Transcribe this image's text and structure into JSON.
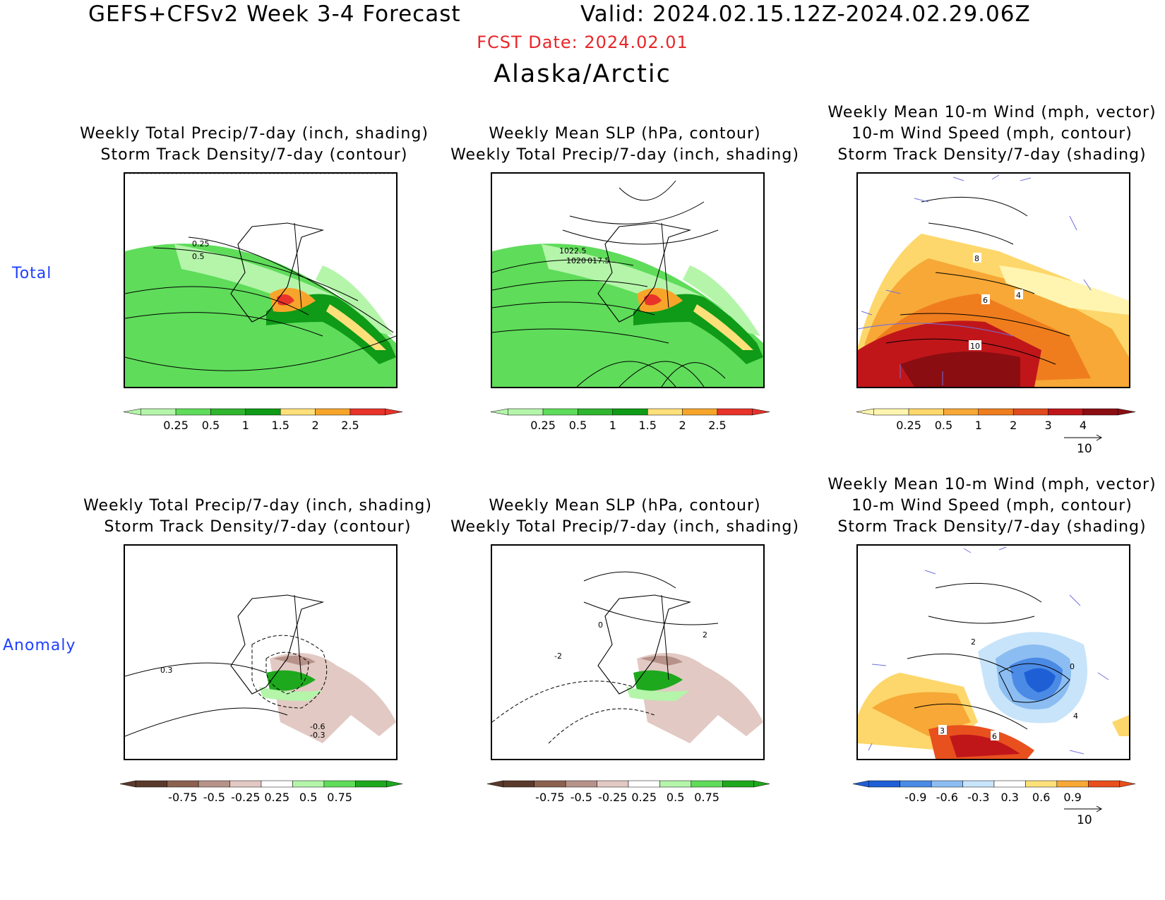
{
  "header": {
    "title_left": "GEFS+CFSv2 Week 3-4 Forecast",
    "title_right": "Valid: 2024.02.15.12Z-2024.02.29.06Z",
    "fcst_date": "FCST Date: 2024.02.01",
    "region": "Alaska/Arctic"
  },
  "rows": {
    "total_label": "Total",
    "anomaly_label": "Anomaly"
  },
  "panels": {
    "precip_track": {
      "line1": "Weekly Total Precip/7-day (inch, shading)",
      "line2": "Storm Track Density/7-day (contour)"
    },
    "slp_precip": {
      "line1": "Weekly Mean SLP (hPa, contour)",
      "line2": "Weekly Total Precip/7-day (inch, shading)"
    },
    "wind_track": {
      "line1": "Weekly Mean 10-m Wind (mph, vector)",
      "line2": "10-m Wind Speed (mph, contour)",
      "line3": "Storm Track Density/7-day (shading)"
    }
  },
  "map_labels": {
    "total_precip": [
      "0.25",
      "0.5"
    ],
    "total_slp": [
      "1022.5",
      "1020",
      "017.5"
    ],
    "total_wind": [
      "8",
      "6",
      "4",
      "10"
    ],
    "anom_precip": [
      "0.3",
      "-0.6",
      "-0.3"
    ],
    "anom_slp": [
      "0",
      "-2",
      "2"
    ],
    "anom_wind": [
      "2",
      "0",
      "4",
      "3",
      "6"
    ]
  },
  "colorbars": {
    "precip_total": {
      "labels": [
        "0.25",
        "0.5",
        "1",
        "1.5",
        "2",
        "2.5"
      ],
      "colors": [
        "#b4f5aa",
        "#5fdc5a",
        "#2fb52e",
        "#0f9a17",
        "#fde07a",
        "#f7a52a",
        "#e8322a"
      ]
    },
    "storm_total": {
      "labels": [
        "0.25",
        "0.5",
        "1",
        "2",
        "3",
        "4"
      ],
      "colors": [
        "#fff5b0",
        "#fdd76b",
        "#f7a836",
        "#ef7d1e",
        "#e04a1e",
        "#c0161a",
        "#8a0d12"
      ]
    },
    "precip_anom": {
      "labels": [
        "-0.75",
        "-0.5",
        "-0.25",
        "0.25",
        "0.5",
        "0.75"
      ],
      "colors": [
        "#5a3a2c",
        "#8c6150",
        "#b7928a",
        "#e2c9c3",
        "#ffffff",
        "#b4f5aa",
        "#5fdc5a",
        "#1ea81e"
      ]
    },
    "storm_anom": {
      "labels": [
        "-0.9",
        "-0.6",
        "-0.3",
        "0.3",
        "0.6",
        "0.9"
      ],
      "colors": [
        "#1f5fd6",
        "#4b8be6",
        "#8bbdf2",
        "#c8e4fa",
        "#ffffff",
        "#fde07a",
        "#f7a836",
        "#e8501e"
      ]
    }
  },
  "vector_legend": {
    "value": "10"
  }
}
